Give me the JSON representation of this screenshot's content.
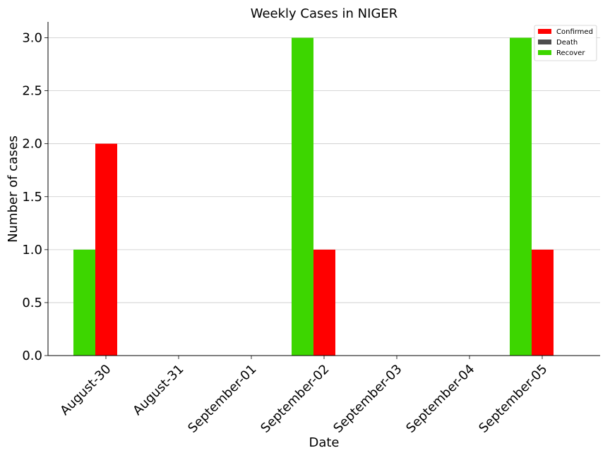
{
  "chart_data": {
    "type": "bar",
    "title": "Weekly Cases in NIGER",
    "xlabel": "Date",
    "ylabel": "Number of cases",
    "categories": [
      "August-30",
      "August-31",
      "September-01",
      "September-02",
      "September-03",
      "September-04",
      "September-05"
    ],
    "series": [
      {
        "name": "Confirmed",
        "color": "#ff0000",
        "values": [
          2,
          0,
          0,
          1,
          0,
          0,
          1
        ]
      },
      {
        "name": "Death",
        "color": "#4d4d4d",
        "values": [
          0,
          0,
          0,
          0,
          0,
          0,
          0
        ]
      },
      {
        "name": "Recover",
        "color": "#3dd600",
        "values": [
          1,
          0,
          0,
          3,
          0,
          0,
          3
        ]
      }
    ],
    "bar_order": [
      "Recover",
      "Confirmed",
      "Death"
    ],
    "ylim": [
      0,
      3.15
    ],
    "yticks": [
      "0.0",
      "0.5",
      "1.0",
      "1.5",
      "2.0",
      "2.5",
      "3.0"
    ],
    "grid": "horizontal",
    "legend_position": "top-right"
  }
}
